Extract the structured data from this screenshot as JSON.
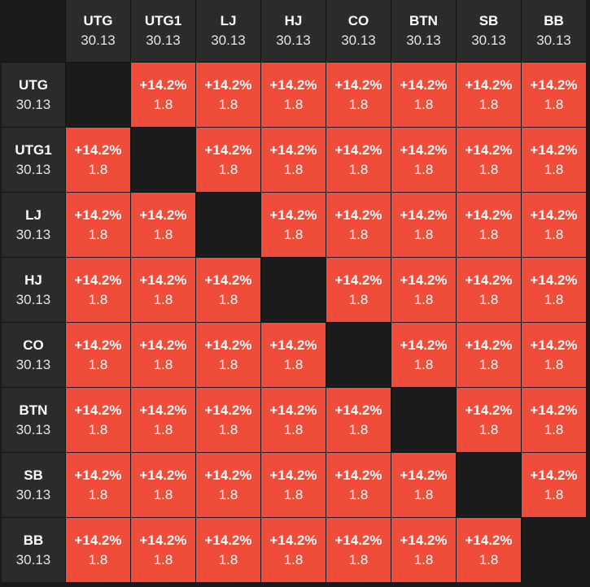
{
  "columns": [
    {
      "label": "UTG",
      "value": "30.13"
    },
    {
      "label": "UTG1",
      "value": "30.13"
    },
    {
      "label": "LJ",
      "value": "30.13"
    },
    {
      "label": "HJ",
      "value": "30.13"
    },
    {
      "label": "CO",
      "value": "30.13"
    },
    {
      "label": "BTN",
      "value": "30.13"
    },
    {
      "label": "SB",
      "value": "30.13"
    },
    {
      "label": "BB",
      "value": "30.13"
    }
  ],
  "rows": [
    {
      "label": "UTG",
      "value": "30.13",
      "cells": [
        null,
        {
          "change": "+14.2%",
          "value": "1.8"
        },
        {
          "change": "+14.2%",
          "value": "1.8"
        },
        {
          "change": "+14.2%",
          "value": "1.8"
        },
        {
          "change": "+14.2%",
          "value": "1.8"
        },
        {
          "change": "+14.2%",
          "value": "1.8"
        },
        {
          "change": "+14.2%",
          "value": "1.8"
        },
        {
          "change": "+14.2%",
          "value": "1.8"
        }
      ]
    },
    {
      "label": "UTG1",
      "value": "30.13",
      "cells": [
        {
          "change": "+14.2%",
          "value": "1.8"
        },
        null,
        {
          "change": "+14.2%",
          "value": "1.8"
        },
        {
          "change": "+14.2%",
          "value": "1.8"
        },
        {
          "change": "+14.2%",
          "value": "1.8"
        },
        {
          "change": "+14.2%",
          "value": "1.8"
        },
        {
          "change": "+14.2%",
          "value": "1.8"
        },
        {
          "change": "+14.2%",
          "value": "1.8"
        }
      ]
    },
    {
      "label": "LJ",
      "value": "30.13",
      "cells": [
        {
          "change": "+14.2%",
          "value": "1.8"
        },
        {
          "change": "+14.2%",
          "value": "1.8"
        },
        null,
        {
          "change": "+14.2%",
          "value": "1.8"
        },
        {
          "change": "+14.2%",
          "value": "1.8"
        },
        {
          "change": "+14.2%",
          "value": "1.8"
        },
        {
          "change": "+14.2%",
          "value": "1.8"
        },
        {
          "change": "+14.2%",
          "value": "1.8"
        }
      ]
    },
    {
      "label": "HJ",
      "value": "30.13",
      "cells": [
        {
          "change": "+14.2%",
          "value": "1.8"
        },
        {
          "change": "+14.2%",
          "value": "1.8"
        },
        {
          "change": "+14.2%",
          "value": "1.8"
        },
        null,
        {
          "change": "+14.2%",
          "value": "1.8"
        },
        {
          "change": "+14.2%",
          "value": "1.8"
        },
        {
          "change": "+14.2%",
          "value": "1.8"
        },
        {
          "change": "+14.2%",
          "value": "1.8"
        }
      ]
    },
    {
      "label": "CO",
      "value": "30.13",
      "cells": [
        {
          "change": "+14.2%",
          "value": "1.8"
        },
        {
          "change": "+14.2%",
          "value": "1.8"
        },
        {
          "change": "+14.2%",
          "value": "1.8"
        },
        {
          "change": "+14.2%",
          "value": "1.8"
        },
        null,
        {
          "change": "+14.2%",
          "value": "1.8"
        },
        {
          "change": "+14.2%",
          "value": "1.8"
        },
        {
          "change": "+14.2%",
          "value": "1.8"
        }
      ]
    },
    {
      "label": "BTN",
      "value": "30.13",
      "cells": [
        {
          "change": "+14.2%",
          "value": "1.8"
        },
        {
          "change": "+14.2%",
          "value": "1.8"
        },
        {
          "change": "+14.2%",
          "value": "1.8"
        },
        {
          "change": "+14.2%",
          "value": "1.8"
        },
        {
          "change": "+14.2%",
          "value": "1.8"
        },
        null,
        {
          "change": "+14.2%",
          "value": "1.8"
        },
        {
          "change": "+14.2%",
          "value": "1.8"
        }
      ]
    },
    {
      "label": "SB",
      "value": "30.13",
      "cells": [
        {
          "change": "+14.2%",
          "value": "1.8"
        },
        {
          "change": "+14.2%",
          "value": "1.8"
        },
        {
          "change": "+14.2%",
          "value": "1.8"
        },
        {
          "change": "+14.2%",
          "value": "1.8"
        },
        {
          "change": "+14.2%",
          "value": "1.8"
        },
        {
          "change": "+14.2%",
          "value": "1.8"
        },
        null,
        {
          "change": "+14.2%",
          "value": "1.8"
        }
      ]
    },
    {
      "label": "BB",
      "value": "30.13",
      "cells": [
        {
          "change": "+14.2%",
          "value": "1.8"
        },
        {
          "change": "+14.2%",
          "value": "1.8"
        },
        {
          "change": "+14.2%",
          "value": "1.8"
        },
        {
          "change": "+14.2%",
          "value": "1.8"
        },
        {
          "change": "+14.2%",
          "value": "1.8"
        },
        {
          "change": "+14.2%",
          "value": "1.8"
        },
        {
          "change": "+14.2%",
          "value": "1.8"
        },
        null
      ]
    }
  ]
}
